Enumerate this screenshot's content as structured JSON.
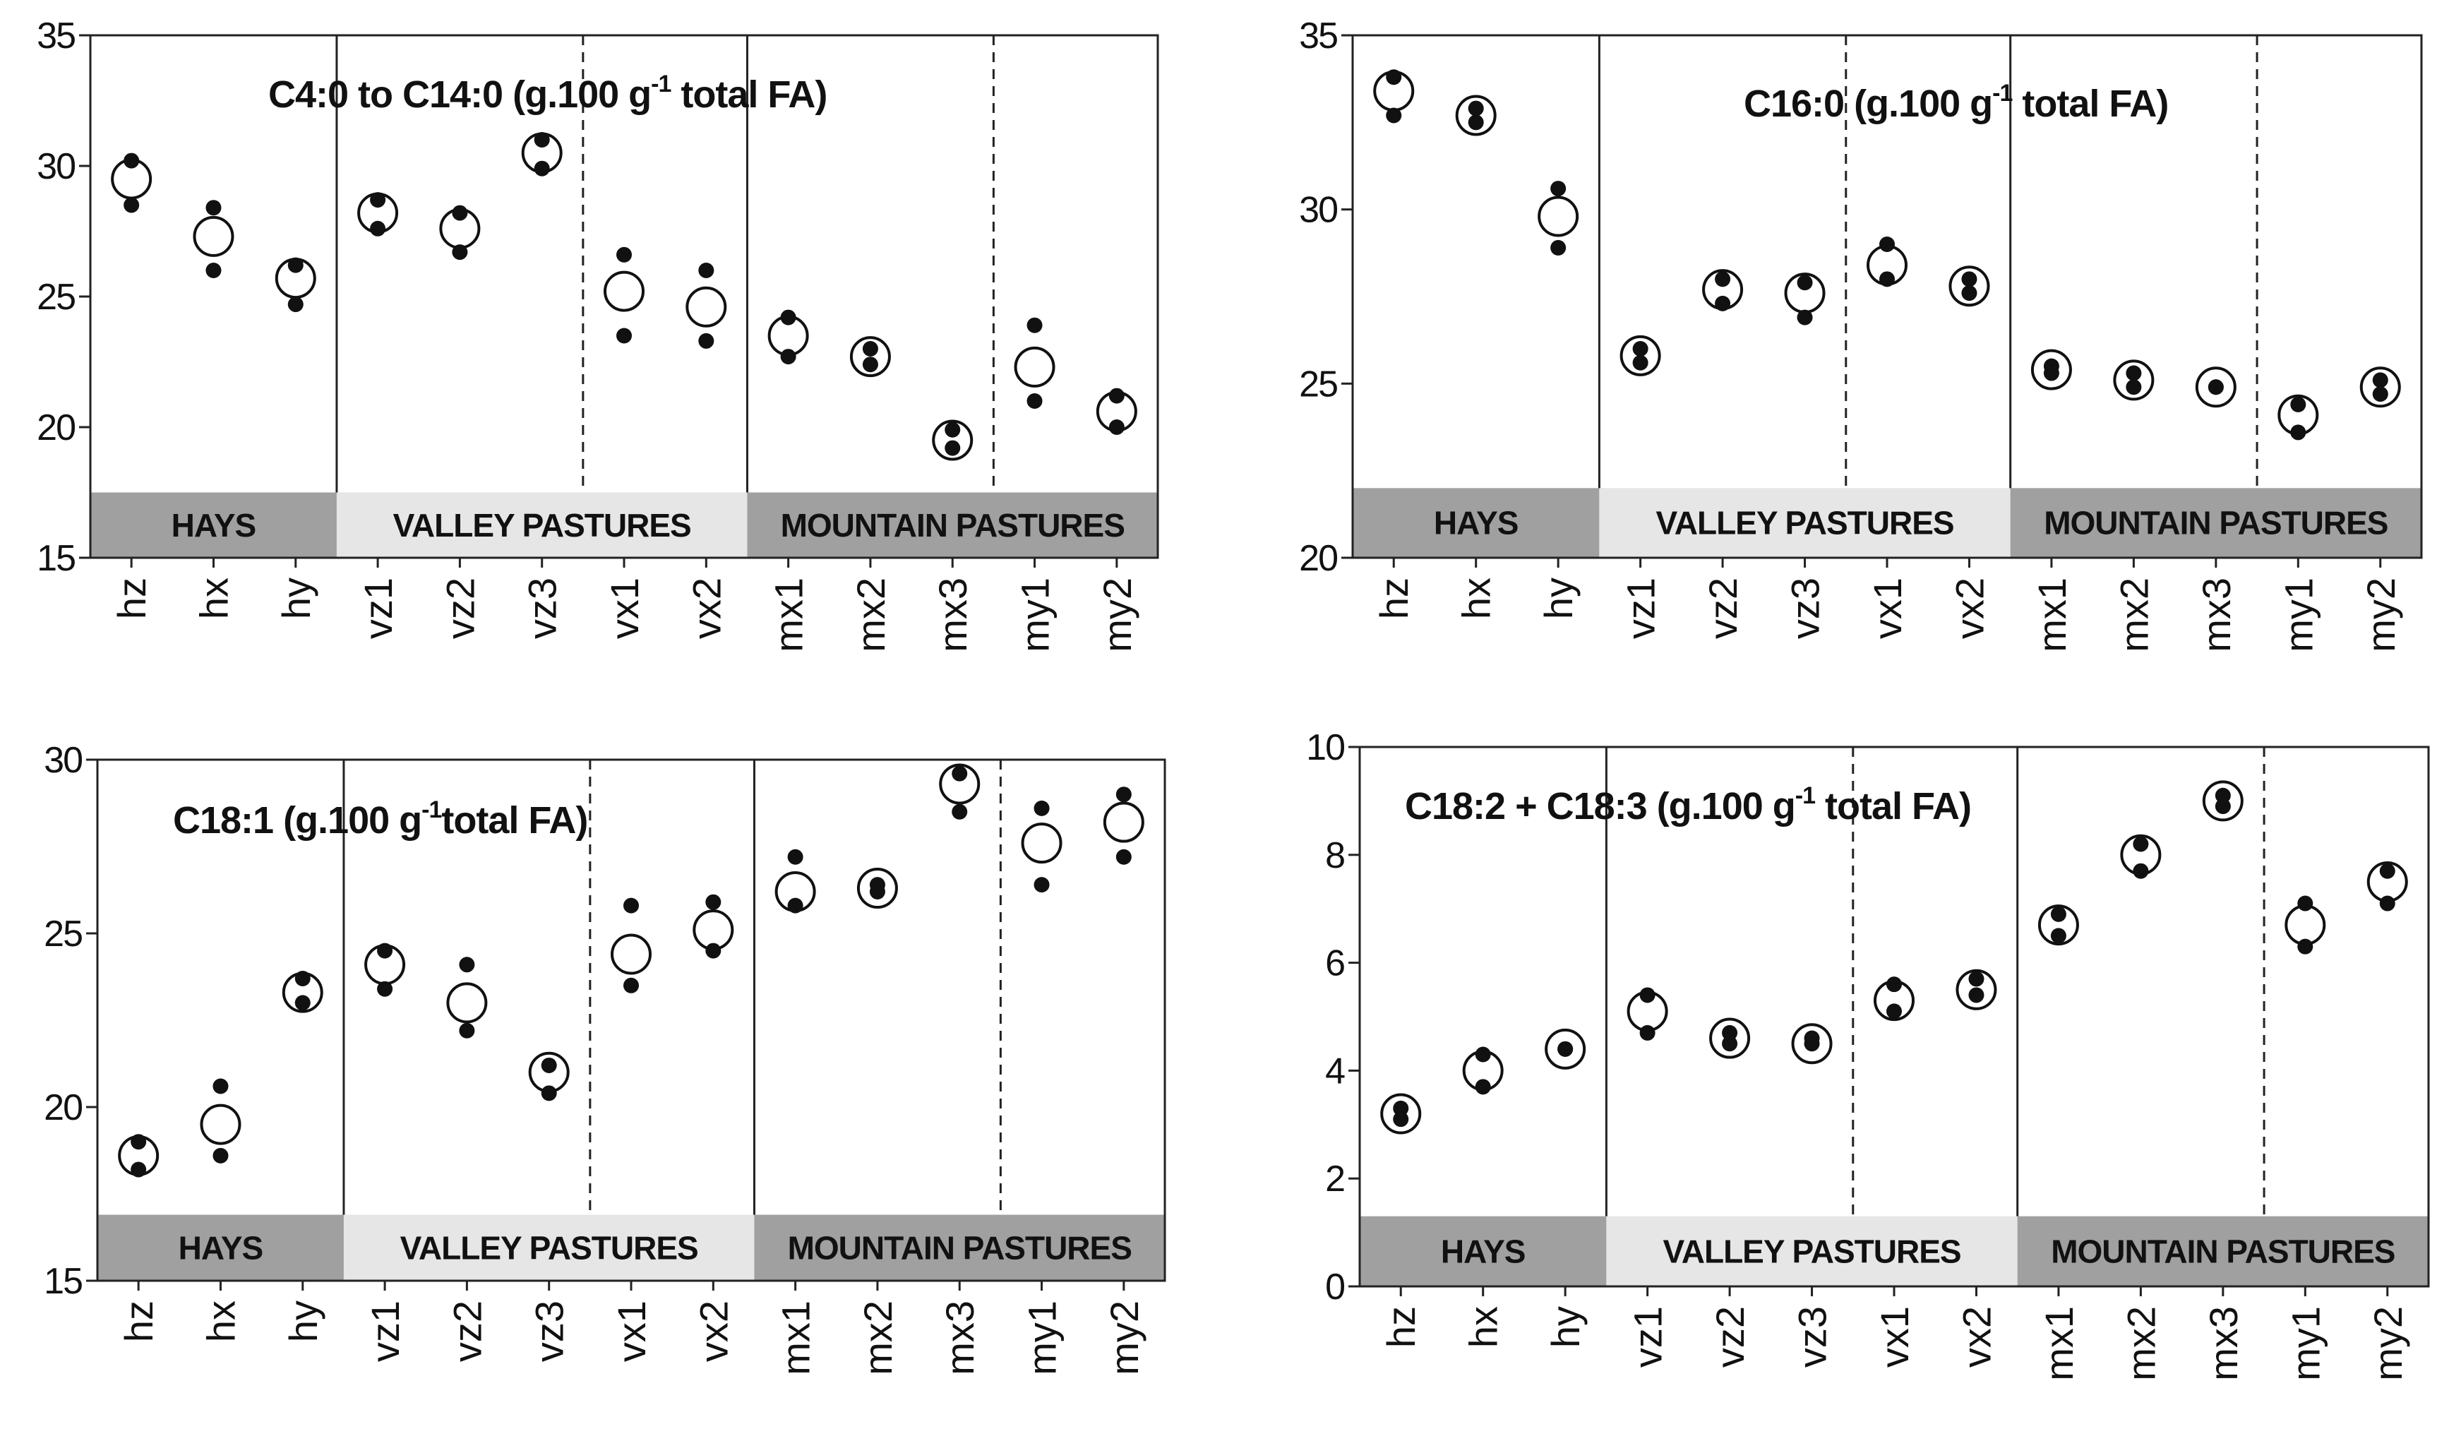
{
  "chart_data": [
    {
      "type": "scatter",
      "title": {
        "main": "C4:0 to C14:0 (g.100 g",
        "sup": "-1",
        "rest": " total FA)"
      },
      "ylim": [
        15,
        35
      ],
      "yticks": [
        "15",
        "20",
        "25",
        "30",
        "35"
      ],
      "yticks_num": [
        15,
        20,
        25,
        30,
        35
      ],
      "categories": [
        "hz",
        "hx",
        "hy",
        "vz1",
        "vz2",
        "vz3",
        "vx1",
        "vx2",
        "mx1",
        "mx2",
        "mx3",
        "my1",
        "my2"
      ],
      "groups": [
        {
          "label": "HAYS",
          "color": "#a0a0a0"
        },
        {
          "label": "VALLEY PASTURES",
          "color": "#e6e6e6"
        },
        {
          "label": "MOUNTAIN PASTURES",
          "color": "#a0a0a0"
        }
      ],
      "band_bottom": 17.5,
      "means": [
        29.5,
        27.3,
        25.7,
        28.2,
        27.6,
        30.5,
        25.2,
        24.6,
        23.5,
        22.7,
        19.5,
        22.3,
        20.6
      ],
      "individual": [
        [
          30.2,
          28.5
        ],
        [
          28.4,
          26.0
        ],
        [
          26.2,
          24.7
        ],
        [
          28.7,
          27.6
        ],
        [
          28.2,
          26.7
        ],
        [
          31.0,
          29.9
        ],
        [
          26.6,
          23.5
        ],
        [
          26.0,
          23.3
        ],
        [
          24.2,
          22.7
        ],
        [
          23.0,
          22.4
        ],
        [
          19.9,
          19.2
        ],
        [
          23.9,
          21.0
        ],
        [
          21.2,
          20.0
        ]
      ]
    },
    {
      "type": "scatter",
      "title": {
        "main": "C16:0 (g.100 g",
        "sup": "-1",
        "rest": " total FA)"
      },
      "ylim": [
        20,
        35
      ],
      "yticks": [
        "20",
        "25",
        "30",
        "35"
      ],
      "yticks_num": [
        20,
        25,
        30,
        35
      ],
      "categories": [
        "hz",
        "hx",
        "hy",
        "vz1",
        "vz2",
        "vz3",
        "vx1",
        "vx2",
        "mx1",
        "mx2",
        "mx3",
        "my1",
        "my2"
      ],
      "groups": [
        {
          "label": "HAYS",
          "color": "#a0a0a0"
        },
        {
          "label": "VALLEY PASTURES",
          "color": "#e6e6e6"
        },
        {
          "label": "MOUNTAIN PASTURES",
          "color": "#a0a0a0"
        }
      ],
      "band_bottom": 22.0,
      "means": [
        33.4,
        32.7,
        29.8,
        25.8,
        27.7,
        27.6,
        28.4,
        27.8,
        25.4,
        25.1,
        24.9,
        24.1,
        24.9
      ],
      "individual": [
        [
          33.8,
          32.7
        ],
        [
          32.9,
          32.5
        ],
        [
          30.6,
          28.9
        ],
        [
          26.0,
          25.6
        ],
        [
          28.0,
          27.3
        ],
        [
          27.9,
          26.9
        ],
        [
          29.0,
          28.0
        ],
        [
          28.0,
          27.6
        ],
        [
          25.5,
          25.3
        ],
        [
          25.3,
          24.9
        ],
        [
          24.9,
          24.9
        ],
        [
          24.4,
          23.6
        ],
        [
          25.1,
          24.7
        ]
      ]
    },
    {
      "type": "scatter",
      "title": {
        "main": "C18:1 (g.100 g",
        "sup": "-1",
        "rest": "total FA)"
      },
      "ylim": [
        15,
        30
      ],
      "yticks": [
        "15",
        "20",
        "25",
        "30"
      ],
      "yticks_num": [
        15,
        20,
        25,
        30
      ],
      "categories": [
        "hz",
        "hx",
        "hy",
        "vz1",
        "vz2",
        "vz3",
        "vx1",
        "vx2",
        "mx1",
        "mx2",
        "mx3",
        "my1",
        "my2"
      ],
      "groups": [
        {
          "label": "HAYS",
          "color": "#a0a0a0"
        },
        {
          "label": "VALLEY PASTURES",
          "color": "#e6e6e6"
        },
        {
          "label": "MOUNTAIN PASTURES",
          "color": "#a0a0a0"
        }
      ],
      "band_bottom": 16.9,
      "means": [
        18.6,
        19.5,
        23.3,
        24.1,
        23.0,
        21.0,
        24.4,
        25.1,
        26.2,
        26.3,
        29.3,
        27.6,
        28.2
      ],
      "individual": [
        [
          19.0,
          18.2
        ],
        [
          20.6,
          18.6
        ],
        [
          23.7,
          23.0
        ],
        [
          24.5,
          23.4
        ],
        [
          24.1,
          22.2
        ],
        [
          21.2,
          20.4
        ],
        [
          25.8,
          23.5
        ],
        [
          25.9,
          24.5
        ],
        [
          27.2,
          25.8
        ],
        [
          26.4,
          26.2
        ],
        [
          29.6,
          28.5
        ],
        [
          28.6,
          26.4
        ],
        [
          29.0,
          27.2
        ]
      ]
    },
    {
      "type": "scatter",
      "title": {
        "main": "C18:2 + C18:3 (g.100 g",
        "sup": "-1",
        "rest": " total FA)"
      },
      "ylim": [
        0,
        10
      ],
      "yticks": [
        "0",
        "2",
        "4",
        "6",
        "8",
        "10"
      ],
      "yticks_num": [
        0,
        2,
        4,
        6,
        8,
        10
      ],
      "categories": [
        "hz",
        "hx",
        "hy",
        "vz1",
        "vz2",
        "vz3",
        "vx1",
        "vx2",
        "mx1",
        "mx2",
        "mx3",
        "my1",
        "my2"
      ],
      "groups": [
        {
          "label": "HAYS",
          "color": "#a0a0a0"
        },
        {
          "label": "VALLEY PASTURES",
          "color": "#e6e6e6"
        },
        {
          "label": "MOUNTAIN PASTURES",
          "color": "#a0a0a0"
        }
      ],
      "band_bottom": 1.3,
      "means": [
        3.2,
        4.0,
        4.4,
        5.1,
        4.6,
        4.5,
        5.3,
        5.5,
        6.7,
        8.0,
        9.0,
        6.7,
        7.5
      ],
      "individual": [
        [
          3.3,
          3.1
        ],
        [
          4.3,
          3.7
        ],
        [
          4.4,
          4.4
        ],
        [
          5.4,
          4.7
        ],
        [
          4.7,
          4.5
        ],
        [
          4.6,
          4.5
        ],
        [
          5.6,
          5.1
        ],
        [
          5.7,
          5.4
        ],
        [
          6.9,
          6.5
        ],
        [
          8.2,
          7.7
        ],
        [
          9.1,
          8.9
        ],
        [
          7.1,
          6.3
        ],
        [
          7.7,
          7.1
        ]
      ]
    }
  ]
}
